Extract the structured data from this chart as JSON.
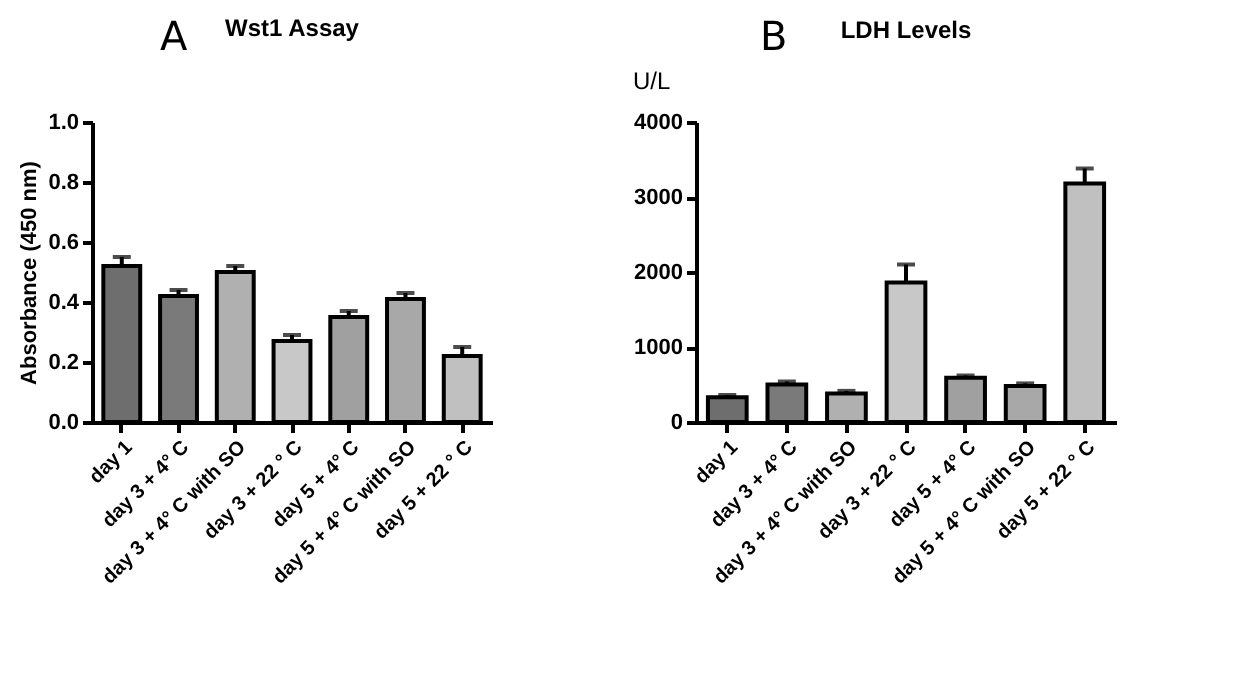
{
  "chart_data": [
    {
      "type": "bar",
      "title": "Wst1 Assay",
      "ylabel": "Absorbance (450 nm)",
      "annotations": [
        "A"
      ],
      "categories": [
        "day 1",
        "day 3 + 4° C",
        "day 3 + 4° C with SO",
        "day 3 + 22 ° C",
        "day 5 + 4° C",
        "day 5 + 4° C with SO",
        "day 5 + 22 ° C"
      ],
      "values": [
        0.52,
        0.42,
        0.5,
        0.27,
        0.35,
        0.41,
        0.22
      ],
      "errors": [
        0.03,
        0.02,
        0.02,
        0.02,
        0.02,
        0.02,
        0.03
      ],
      "colors": [
        "#6e6e6e",
        "#7a7a7a",
        "#b0b0b0",
        "#c8c8c8",
        "#a0a0a0",
        "#a8a8a8",
        "#c0c0c0"
      ],
      "ylim": [
        0,
        1
      ],
      "yticks": [
        {
          "value": 0,
          "label": "0.0"
        },
        0.2,
        0.4,
        0.6,
        0.8,
        {
          "value": 1,
          "label": "1.0"
        }
      ],
      "grid": false
    },
    {
      "type": "bar",
      "title": "LDH Levels",
      "ylabel": "U/L",
      "annotations": [
        "B"
      ],
      "categories": [
        "day 1",
        "day 3 + 4° C",
        "day 3 + 4° C with SO",
        "day 3 + 22 ° C",
        "day 5 + 4° C",
        "day 5 + 4° C with SO",
        "day 5 + 22 ° C"
      ],
      "values": [
        330,
        500,
        380,
        1860,
        590,
        480,
        3180
      ],
      "errors": [
        30,
        40,
        35,
        240,
        30,
        35,
        200
      ],
      "colors": [
        "#6e6e6e",
        "#7a7a7a",
        "#b0b0b0",
        "#c8c8c8",
        "#a0a0a0",
        "#a8a8a8",
        "#c0c0c0"
      ],
      "ylim": [
        0,
        4000
      ],
      "yticks": [
        0,
        1000,
        2000,
        3000,
        4000
      ],
      "grid": false
    }
  ]
}
